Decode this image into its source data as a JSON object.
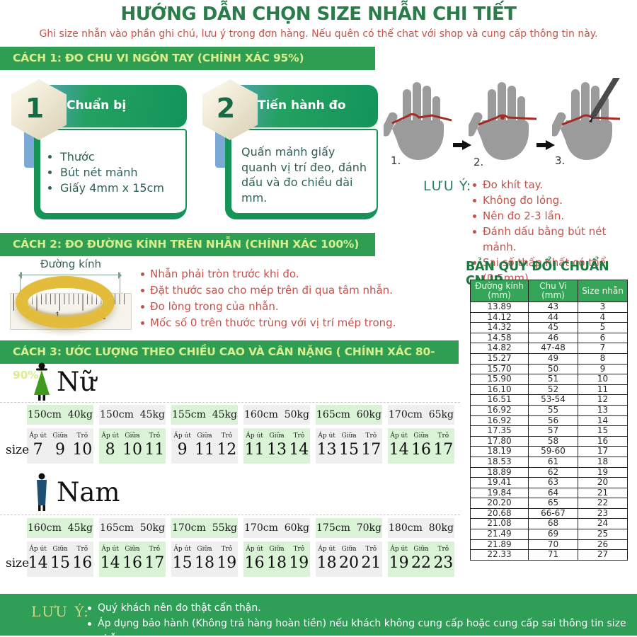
{
  "colors": {
    "accent_green": "#2f9e52",
    "title_green": "#2a7d4b",
    "bar_text": "#d9ee8d",
    "note_red": "#c4524b",
    "table_header_green": "#35a55a",
    "cell_green": "#daf3d7",
    "cell_gray": "#efefef",
    "gold_ring": "#e2bc3a"
  },
  "page": {
    "title": "HƯỚNG DẪN CHỌN SIZE NHẪN CHI TIẾT",
    "subtitle": "Ghi size nhẫn vào phần ghi chú, lưu ý trong đơn hàng. Nếu quên có thể chat với shop và cung cấp thông tin này."
  },
  "section1": {
    "header": "CÁCH 1: ĐO CHU VI NGÓN TAY  (CHÍNH XÁC 95%)",
    "steps": [
      {
        "number": "1",
        "title": "Chuẩn bị",
        "bullets": [
          "Thước",
          "Bút nét mảnh",
          "Giấy 4mm x 15cm"
        ]
      },
      {
        "number": "2",
        "title": "Tiến hành đo",
        "text": "Quấn mảnh giấy quanh vị trí đeo, đánh dấu và đo chiều dài mm."
      }
    ],
    "hand_labels": [
      "1.",
      "2.",
      "3."
    ],
    "notes_label": "LƯU Ý:",
    "notes": [
      "Đo khít tay.",
      "Không đo lỏng.",
      "Nên đo 2-3 lần.",
      "Đánh dấu bằng bút nét mảnh.",
      "Sai số thấp nhất có thể (0.5mm)."
    ]
  },
  "section2": {
    "header": "CÁCH 2: ĐO ĐƯỜNG KÍNH TRÊN NHẪN (CHÍNH XÁC 100%)",
    "ring_label": "Đường kính",
    "ruler_labels": {
      "one": "1",
      "cm": "cm",
      "two": "2"
    },
    "bullets": [
      "Nhẫn phải tròn trước khi đo.",
      "Đặt thước sao cho mép trên đi qua tâm nhẫn.",
      "Đo lòng trong của nhẫn.",
      "Mốc số 0 trên thước trùng với vị trí mép trong."
    ]
  },
  "conversion_table": {
    "title": "BẢN QUY ĐỔI CHUẨN CN,JP",
    "headers": [
      [
        "Đường kính",
        "(mm)"
      ],
      [
        "Chu Vi",
        "(mm)"
      ],
      [
        "Size nhẫn",
        ""
      ]
    ],
    "rows": [
      [
        "13.89",
        "43",
        "3"
      ],
      [
        "14.12",
        "44",
        "4"
      ],
      [
        "14.32",
        "45",
        "5"
      ],
      [
        "14.58",
        "46",
        "6"
      ],
      [
        "14.82",
        "47-48",
        "7"
      ],
      [
        "15.27",
        "49",
        "8"
      ],
      [
        "15.70",
        "50",
        "9"
      ],
      [
        "15.90",
        "51",
        "10"
      ],
      [
        "16.10",
        "52",
        "11"
      ],
      [
        "16.51",
        "53-54",
        "12"
      ],
      [
        "16.92",
        "55",
        "13"
      ],
      [
        "16.92",
        "56",
        "14"
      ],
      [
        "17.35",
        "57",
        "15"
      ],
      [
        "17.80",
        "58",
        "16"
      ],
      [
        "18.19",
        "59-60",
        "17"
      ],
      [
        "18.53",
        "61",
        "18"
      ],
      [
        "18.89",
        "62",
        "19"
      ],
      [
        "19.41",
        "63",
        "20"
      ],
      [
        "19.84",
        "64",
        "21"
      ],
      [
        "20.20",
        "65",
        "22"
      ],
      [
        "20.68",
        "66-67",
        "23"
      ],
      [
        "21.08",
        "68",
        "24"
      ],
      [
        "21.49",
        "69",
        "25"
      ],
      [
        "21.89",
        "70",
        "26"
      ],
      [
        "22.33",
        "71",
        "27"
      ]
    ]
  },
  "section3": {
    "header": "CÁCH 3: ƯỚC LƯỢNG THEO CHIỀU CAO VÀ CÂN NẶNG ( CHÍNH XÁC 80-90%)",
    "size_label": "size",
    "finger_labels": [
      "Áp út",
      "Giữa",
      "Trỏ"
    ],
    "female": {
      "label": "Nữ",
      "groups": [
        {
          "height": "150cm",
          "weight": "40kg",
          "sizes": [
            "7",
            "9",
            "10"
          ]
        },
        {
          "height": "150cm",
          "weight": "45kg",
          "sizes": [
            "8",
            "10",
            "11"
          ]
        },
        {
          "height": "155cm",
          "weight": "45kg",
          "sizes": [
            "9",
            "11",
            "12"
          ]
        },
        {
          "height": "160cm",
          "weight": "50kg",
          "sizes": [
            "11",
            "13",
            "14"
          ]
        },
        {
          "height": "165cm",
          "weight": "60kg",
          "sizes": [
            "13",
            "15",
            "17"
          ]
        },
        {
          "height": "170cm",
          "weight": "65kg",
          "sizes": [
            "14",
            "16",
            "17"
          ]
        }
      ]
    },
    "male": {
      "label": "Nam",
      "groups": [
        {
          "height": "160cm",
          "weight": "45kg",
          "sizes": [
            "14",
            "15",
            "16"
          ]
        },
        {
          "height": "165cm",
          "weight": "50kg",
          "sizes": [
            "14",
            "16",
            "17"
          ]
        },
        {
          "height": "170cm",
          "weight": "55kg",
          "sizes": [
            "15",
            "18",
            "19"
          ]
        },
        {
          "height": "170cm",
          "weight": "60kg",
          "sizes": [
            "16",
            "18",
            "19"
          ]
        },
        {
          "height": "175cm",
          "weight": "70kg",
          "sizes": [
            "18",
            "20",
            "21"
          ]
        },
        {
          "height": "180cm",
          "weight": "80kg",
          "sizes": [
            "19",
            "22",
            "23"
          ]
        }
      ]
    }
  },
  "footer": {
    "label": "LƯU Ý:",
    "notes": [
      "Quý khách nên đo thật cẩn thận.",
      "Áp dụng bảo hành (Không trả hàng hoàn tiền) nếu khách không cung cấp hoặc cung cấp sai thông tin size nhẫn."
    ]
  }
}
